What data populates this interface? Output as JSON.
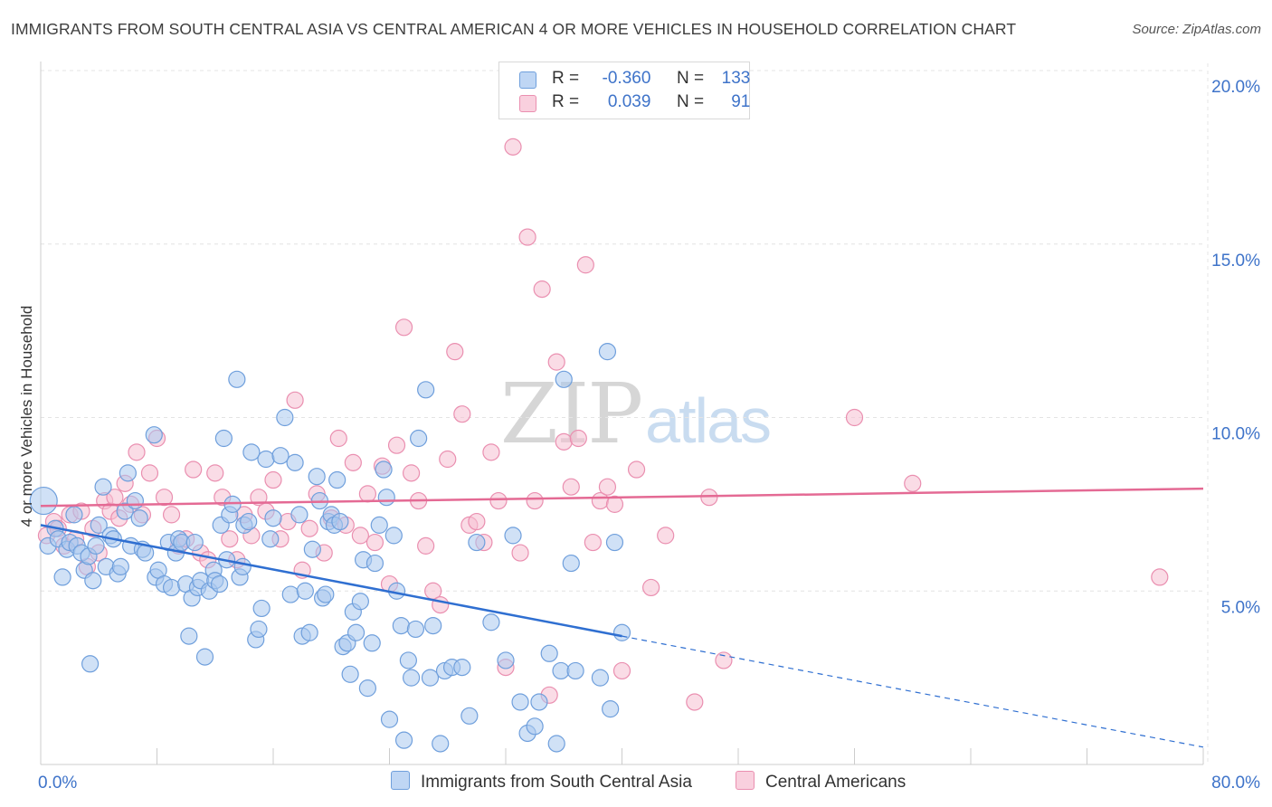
{
  "header": {
    "title": "IMMIGRANTS FROM SOUTH CENTRAL ASIA VS CENTRAL AMERICAN 4 OR MORE VEHICLES IN HOUSEHOLD CORRELATION CHART",
    "source": "Source: ZipAtlas.com"
  },
  "watermark": {
    "zip": "ZIP",
    "atlas": "atlas"
  },
  "legend": {
    "r_label": "R =",
    "n_label": "N =",
    "series": [
      {
        "r": "-0.360",
        "n": "133"
      },
      {
        "r": "0.039",
        "n": "91"
      }
    ]
  },
  "colors": {
    "blue_fill": "#a9c8ef",
    "blue_stroke": "#6f9fdc",
    "blue_line": "#2f6fd1",
    "pink_fill": "#f6bfd2",
    "pink_stroke": "#ea8fb0",
    "pink_line": "#e46a94",
    "tick_label": "#3e73c9",
    "grid": "#e4e4e4"
  },
  "chart_data": {
    "type": "scatter",
    "title": "IMMIGRANTS FROM SOUTH CENTRAL ASIA VS CENTRAL AMERICAN 4 OR MORE VEHICLES IN HOUSEHOLD CORRELATION CHART",
    "xlabel": "",
    "ylabel": "4 or more Vehicles in Household",
    "xlim": [
      0,
      80
    ],
    "ylim": [
      0,
      20
    ],
    "x_tick_labels": [
      {
        "value": 0,
        "label": "0.0%"
      },
      {
        "value": 80,
        "label": "80.0%"
      }
    ],
    "y_ticks": [
      {
        "value": 5,
        "label": "5.0%"
      },
      {
        "value": 10,
        "label": "10.0%"
      },
      {
        "value": 15,
        "label": "15.0%"
      },
      {
        "value": 20,
        "label": "20.0%"
      }
    ],
    "x_minor_ticks": [
      0,
      8,
      16,
      24,
      32,
      40,
      48,
      56,
      64,
      72,
      80
    ],
    "grid": true,
    "legend_placement": "top-center",
    "series": [
      {
        "name": "Immigrants from South Central Asia",
        "color": "#a9c8ef",
        "r": -0.36,
        "n": 133,
        "trend": {
          "x0": 0,
          "y0": 6.9,
          "x1": 40,
          "y1": 3.7,
          "dash_to_x": 80,
          "dash_to_y": 0.5
        },
        "points": [
          [
            0.2,
            7.6
          ],
          [
            0.5,
            6.3
          ],
          [
            1.0,
            6.8
          ],
          [
            1.2,
            6.5
          ],
          [
            1.5,
            5.4
          ],
          [
            1.8,
            6.2
          ],
          [
            2.0,
            6.4
          ],
          [
            2.3,
            7.2
          ],
          [
            2.5,
            6.3
          ],
          [
            2.8,
            6.1
          ],
          [
            3.0,
            5.6
          ],
          [
            3.3,
            6.0
          ],
          [
            3.4,
            2.9
          ],
          [
            3.6,
            5.3
          ],
          [
            3.8,
            6.3
          ],
          [
            4.0,
            6.9
          ],
          [
            4.3,
            8.0
          ],
          [
            4.5,
            5.7
          ],
          [
            4.8,
            6.6
          ],
          [
            5.0,
            6.5
          ],
          [
            5.3,
            5.5
          ],
          [
            5.5,
            5.7
          ],
          [
            5.8,
            7.3
          ],
          [
            6.0,
            8.4
          ],
          [
            6.2,
            6.3
          ],
          [
            6.5,
            7.6
          ],
          [
            6.8,
            7.1
          ],
          [
            7.0,
            6.2
          ],
          [
            7.2,
            6.1
          ],
          [
            7.8,
            9.5
          ],
          [
            7.9,
            5.4
          ],
          [
            8.1,
            5.6
          ],
          [
            8.5,
            5.2
          ],
          [
            8.8,
            6.4
          ],
          [
            9.0,
            5.1
          ],
          [
            9.3,
            6.1
          ],
          [
            9.5,
            6.5
          ],
          [
            9.7,
            6.4
          ],
          [
            10.0,
            5.2
          ],
          [
            10.2,
            3.7
          ],
          [
            10.4,
            4.8
          ],
          [
            10.6,
            6.4
          ],
          [
            10.8,
            5.1
          ],
          [
            11.0,
            5.3
          ],
          [
            11.3,
            3.1
          ],
          [
            11.6,
            5.0
          ],
          [
            11.9,
            5.6
          ],
          [
            12.0,
            5.3
          ],
          [
            12.3,
            5.2
          ],
          [
            12.4,
            6.9
          ],
          [
            12.6,
            9.4
          ],
          [
            12.8,
            5.9
          ],
          [
            13.0,
            7.2
          ],
          [
            13.2,
            7.5
          ],
          [
            13.5,
            11.1
          ],
          [
            13.7,
            5.4
          ],
          [
            13.9,
            5.7
          ],
          [
            14.0,
            6.9
          ],
          [
            14.3,
            7.0
          ],
          [
            14.5,
            9.0
          ],
          [
            14.8,
            3.6
          ],
          [
            15.0,
            3.9
          ],
          [
            15.2,
            4.5
          ],
          [
            15.5,
            8.8
          ],
          [
            15.8,
            6.5
          ],
          [
            16.0,
            7.1
          ],
          [
            16.5,
            8.9
          ],
          [
            16.8,
            10.0
          ],
          [
            17.2,
            4.9
          ],
          [
            17.5,
            8.7
          ],
          [
            17.8,
            7.2
          ],
          [
            18.0,
            3.7
          ],
          [
            18.2,
            5.0
          ],
          [
            18.5,
            3.8
          ],
          [
            18.7,
            6.2
          ],
          [
            19.0,
            8.3
          ],
          [
            19.2,
            7.6
          ],
          [
            19.4,
            4.8
          ],
          [
            19.6,
            4.9
          ],
          [
            19.8,
            7.0
          ],
          [
            20.0,
            7.2
          ],
          [
            20.2,
            6.9
          ],
          [
            20.4,
            8.2
          ],
          [
            20.6,
            7.0
          ],
          [
            20.8,
            3.4
          ],
          [
            21.1,
            3.5
          ],
          [
            21.3,
            2.6
          ],
          [
            21.5,
            4.4
          ],
          [
            21.7,
            3.8
          ],
          [
            22.0,
            4.7
          ],
          [
            22.2,
            5.9
          ],
          [
            22.5,
            2.2
          ],
          [
            22.8,
            3.5
          ],
          [
            23.0,
            5.8
          ],
          [
            23.3,
            6.9
          ],
          [
            23.6,
            8.5
          ],
          [
            23.8,
            7.7
          ],
          [
            24.0,
            1.3
          ],
          [
            24.3,
            6.6
          ],
          [
            24.5,
            5.0
          ],
          [
            24.8,
            4.0
          ],
          [
            25.0,
            0.7
          ],
          [
            25.3,
            3.0
          ],
          [
            25.5,
            2.5
          ],
          [
            25.8,
            3.9
          ],
          [
            26.0,
            9.4
          ],
          [
            26.5,
            10.8
          ],
          [
            26.8,
            2.5
          ],
          [
            27.0,
            4.0
          ],
          [
            27.5,
            0.6
          ],
          [
            27.8,
            2.7
          ],
          [
            28.3,
            2.8
          ],
          [
            29.0,
            2.8
          ],
          [
            29.5,
            1.4
          ],
          [
            30.0,
            6.4
          ],
          [
            31.0,
            4.1
          ],
          [
            32.0,
            3.0
          ],
          [
            32.5,
            6.6
          ],
          [
            33.0,
            1.8
          ],
          [
            33.5,
            0.9
          ],
          [
            34.0,
            1.1
          ],
          [
            34.3,
            1.8
          ],
          [
            35.0,
            3.2
          ],
          [
            35.5,
            0.6
          ],
          [
            35.8,
            2.7
          ],
          [
            36.0,
            11.1
          ],
          [
            36.5,
            5.8
          ],
          [
            36.8,
            2.7
          ],
          [
            38.5,
            2.5
          ],
          [
            39.0,
            11.9
          ],
          [
            39.2,
            1.6
          ],
          [
            39.5,
            6.4
          ],
          [
            40.0,
            3.8
          ]
        ]
      },
      {
        "name": "Central Americans",
        "color": "#f6bfd2",
        "r": 0.039,
        "n": 91,
        "trend": {
          "x0": 0,
          "y0": 7.45,
          "x1": 80,
          "y1": 7.95
        },
        "points": [
          [
            0.4,
            6.6
          ],
          [
            0.9,
            7.0
          ],
          [
            1.2,
            6.8
          ],
          [
            1.6,
            6.3
          ],
          [
            2.0,
            7.2
          ],
          [
            2.4,
            6.5
          ],
          [
            2.8,
            7.3
          ],
          [
            3.2,
            5.7
          ],
          [
            3.6,
            6.8
          ],
          [
            4.0,
            6.1
          ],
          [
            4.4,
            7.6
          ],
          [
            4.8,
            7.3
          ],
          [
            5.1,
            7.7
          ],
          [
            5.4,
            7.1
          ],
          [
            5.8,
            8.1
          ],
          [
            6.2,
            7.5
          ],
          [
            6.6,
            9.0
          ],
          [
            7.0,
            7.2
          ],
          [
            7.5,
            8.4
          ],
          [
            8.0,
            9.4
          ],
          [
            8.5,
            7.7
          ],
          [
            9.0,
            7.2
          ],
          [
            9.5,
            6.3
          ],
          [
            10.0,
            6.5
          ],
          [
            10.5,
            8.5
          ],
          [
            11.0,
            6.1
          ],
          [
            11.5,
            5.9
          ],
          [
            12.0,
            8.4
          ],
          [
            12.5,
            7.7
          ],
          [
            13.0,
            6.5
          ],
          [
            13.5,
            5.9
          ],
          [
            14.0,
            7.2
          ],
          [
            14.5,
            6.6
          ],
          [
            15.0,
            7.7
          ],
          [
            15.5,
            7.3
          ],
          [
            16.0,
            8.2
          ],
          [
            16.5,
            6.5
          ],
          [
            17.0,
            7.0
          ],
          [
            17.5,
            10.5
          ],
          [
            18.0,
            5.6
          ],
          [
            18.5,
            6.8
          ],
          [
            19.0,
            7.8
          ],
          [
            19.5,
            6.1
          ],
          [
            20.0,
            7.1
          ],
          [
            20.5,
            9.4
          ],
          [
            21.0,
            6.9
          ],
          [
            21.5,
            8.7
          ],
          [
            22.0,
            6.6
          ],
          [
            22.5,
            7.8
          ],
          [
            23.0,
            6.4
          ],
          [
            23.5,
            8.6
          ],
          [
            24.0,
            5.2
          ],
          [
            24.5,
            9.2
          ],
          [
            25.0,
            12.6
          ],
          [
            25.5,
            8.4
          ],
          [
            26.0,
            7.6
          ],
          [
            26.5,
            6.3
          ],
          [
            27.0,
            5.0
          ],
          [
            27.5,
            4.6
          ],
          [
            28.0,
            8.8
          ],
          [
            28.5,
            11.9
          ],
          [
            29.0,
            10.1
          ],
          [
            29.5,
            6.9
          ],
          [
            30.0,
            7.0
          ],
          [
            30.5,
            6.4
          ],
          [
            31.0,
            9.0
          ],
          [
            31.5,
            7.6
          ],
          [
            32.0,
            2.8
          ],
          [
            32.5,
            17.8
          ],
          [
            33.0,
            6.1
          ],
          [
            33.5,
            15.2
          ],
          [
            34.0,
            7.6
          ],
          [
            34.5,
            13.7
          ],
          [
            35.0,
            2.0
          ],
          [
            35.5,
            11.6
          ],
          [
            36.0,
            9.3
          ],
          [
            36.5,
            8.0
          ],
          [
            37.0,
            9.4
          ],
          [
            37.5,
            14.4
          ],
          [
            38.0,
            6.4
          ],
          [
            38.5,
            7.6
          ],
          [
            39.0,
            8.0
          ],
          [
            39.5,
            7.5
          ],
          [
            40.0,
            2.7
          ],
          [
            41.0,
            8.5
          ],
          [
            42.0,
            5.1
          ],
          [
            43.0,
            6.6
          ],
          [
            45.0,
            1.8
          ],
          [
            46.0,
            7.7
          ],
          [
            47.0,
            3.0
          ],
          [
            56.0,
            10.0
          ],
          [
            60.0,
            8.1
          ],
          [
            77.0,
            5.4
          ]
        ]
      }
    ]
  },
  "bottom_legend": [
    "Immigrants from South Central Asia",
    "Central Americans"
  ]
}
